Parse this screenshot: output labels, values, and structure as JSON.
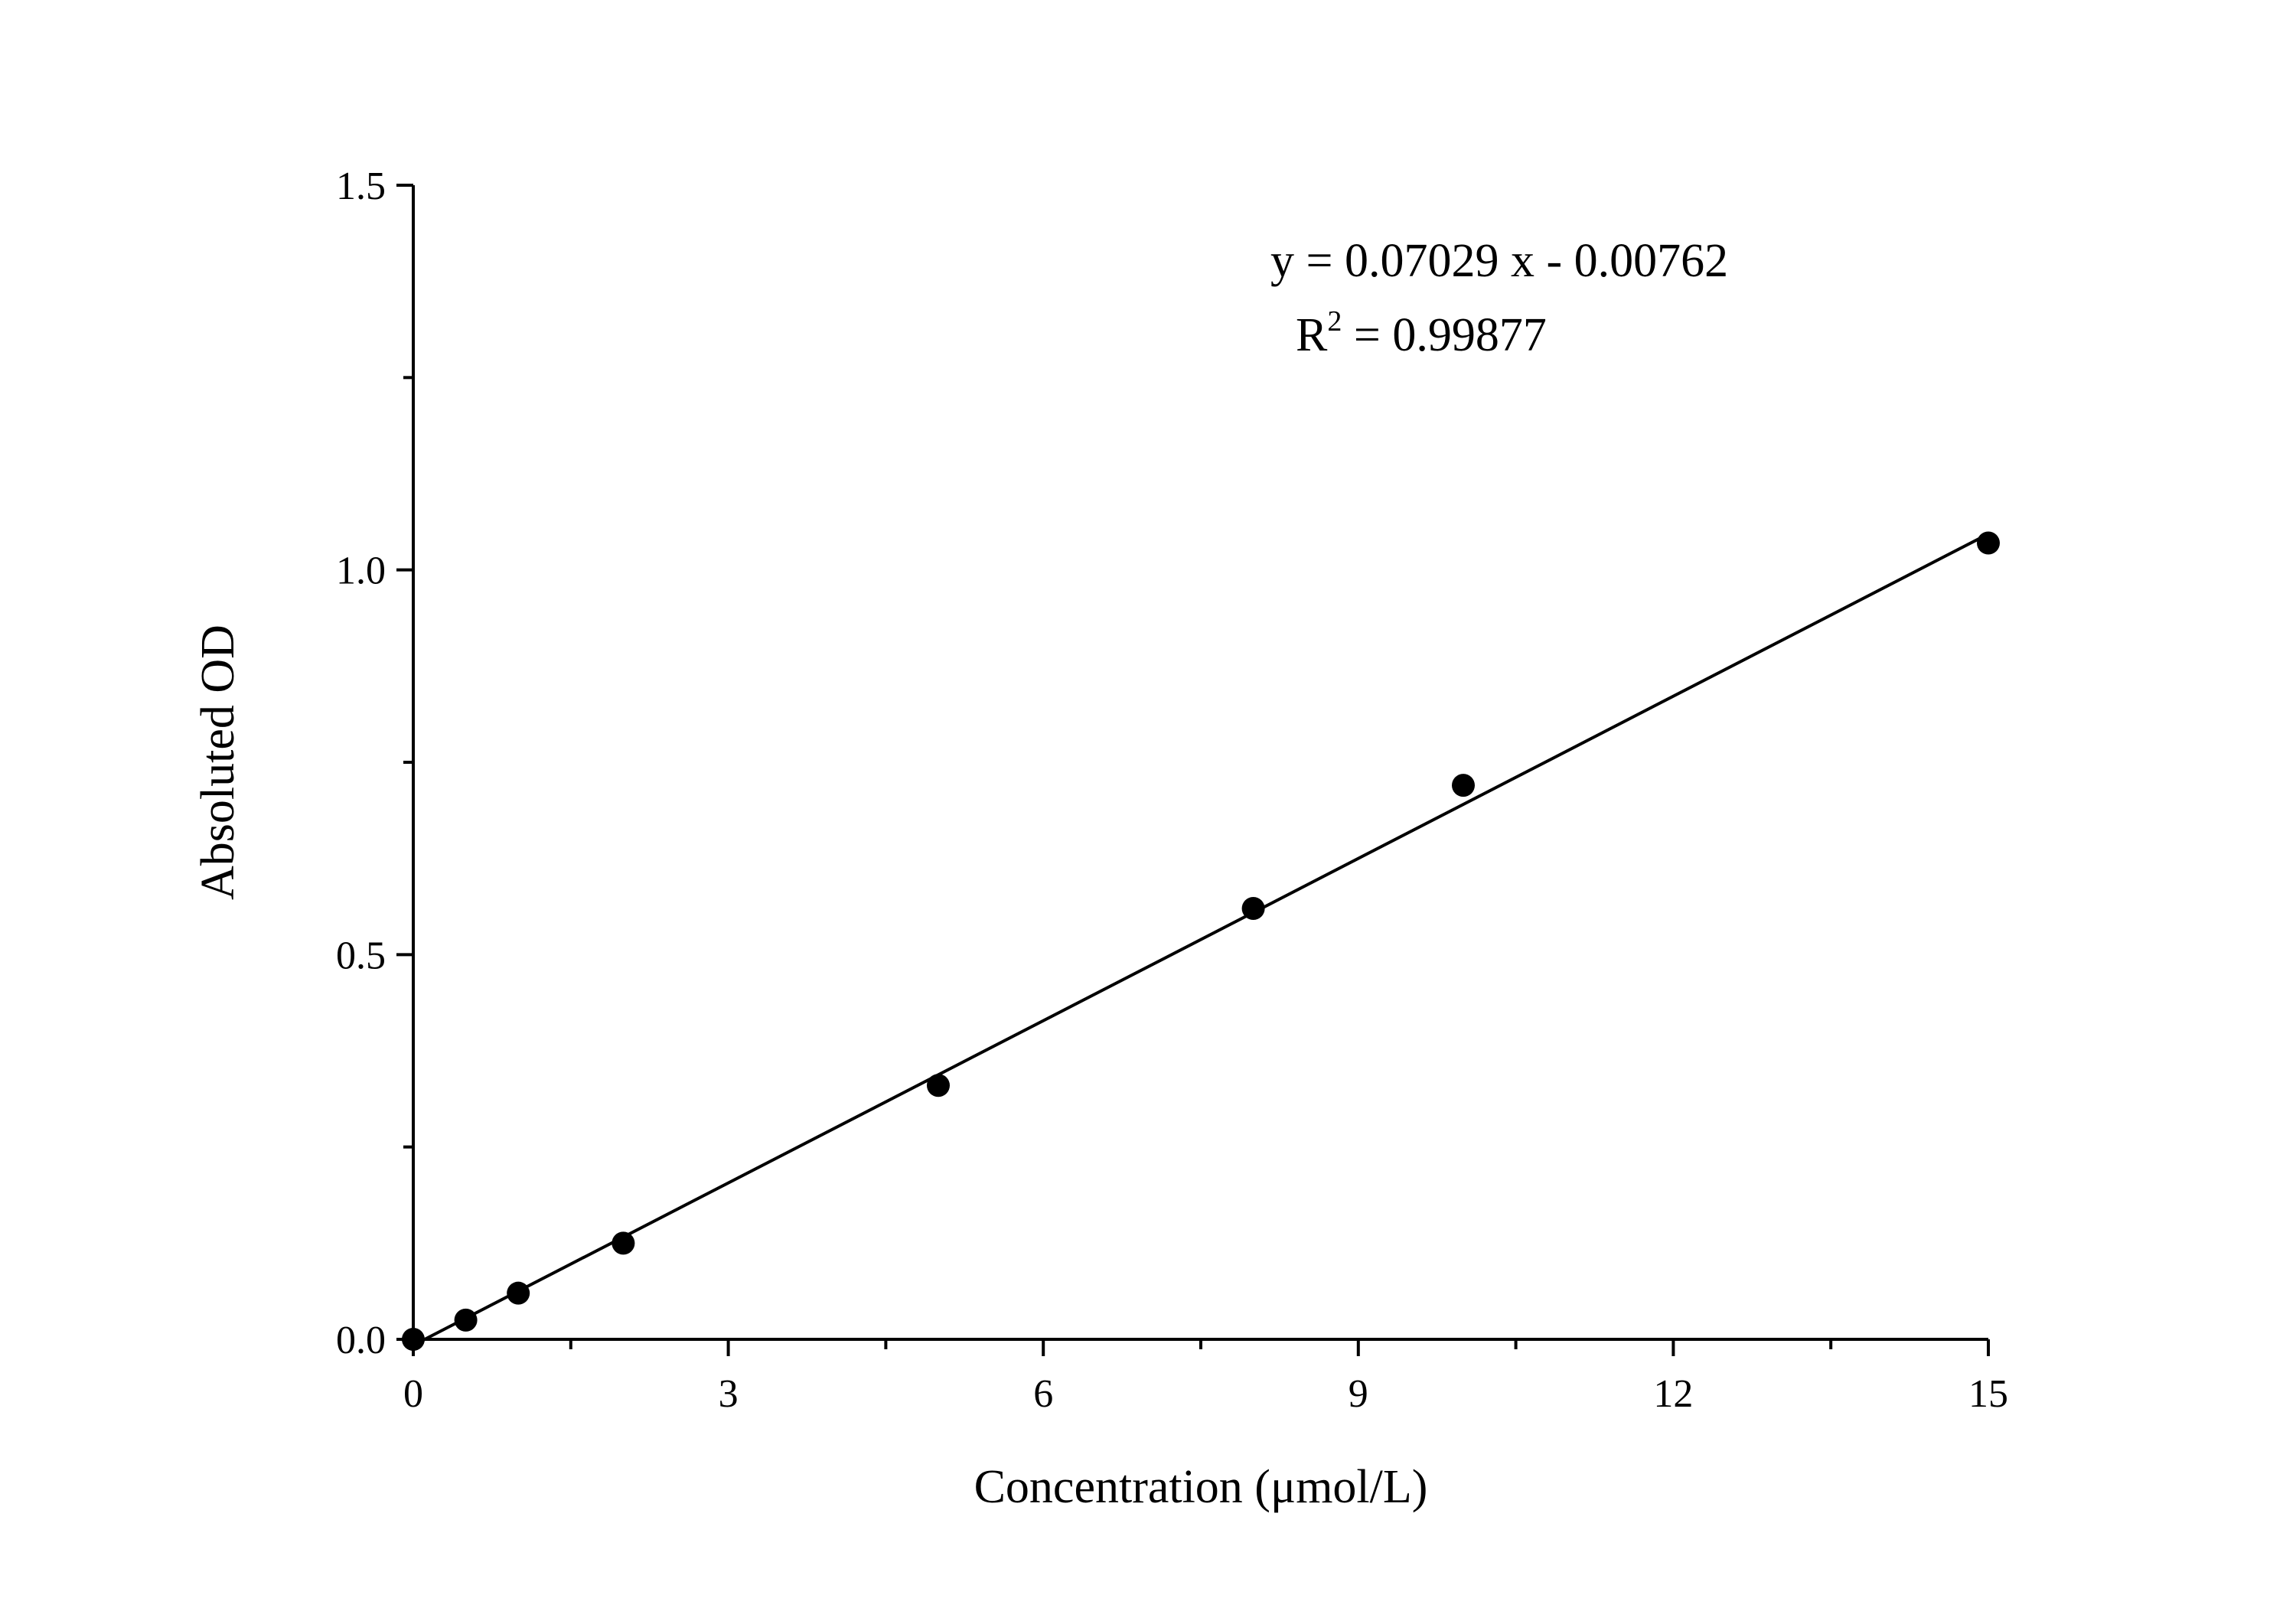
{
  "chart_data": {
    "type": "scatter",
    "xlabel": "Concentration (μmol/L)",
    "ylabel": "Absoluted OD",
    "xlim": [
      0,
      15
    ],
    "ylim": [
      0,
      1.5
    ],
    "x_ticks": [
      0,
      3,
      6,
      9,
      12,
      15
    ],
    "x_tick_labels": [
      "0",
      "3",
      "6",
      "9",
      "12",
      "15"
    ],
    "y_ticks": [
      0,
      0.5,
      1.0,
      1.5
    ],
    "y_tick_labels": [
      "0.0",
      "0.5",
      "1.0",
      "1.5"
    ],
    "grid": false,
    "series": [
      {
        "x": [
          0,
          0.5,
          1,
          2,
          5,
          8,
          10,
          15
        ],
        "y": [
          0.0,
          0.025,
          0.06,
          0.125,
          0.33,
          0.56,
          0.72,
          1.035
        ],
        "marker": "filled-circle",
        "color": "#000000"
      }
    ],
    "fit_line": {
      "slope": 0.07029,
      "intercept": -0.00762,
      "x_range": [
        0.1,
        15
      ],
      "color": "#000000"
    },
    "annotations": {
      "equation": "y = 0.07029 x - 0.00762",
      "r2_prefix": "R",
      "r2_exponent": "2",
      "r2_value": " = 0.99877"
    }
  }
}
